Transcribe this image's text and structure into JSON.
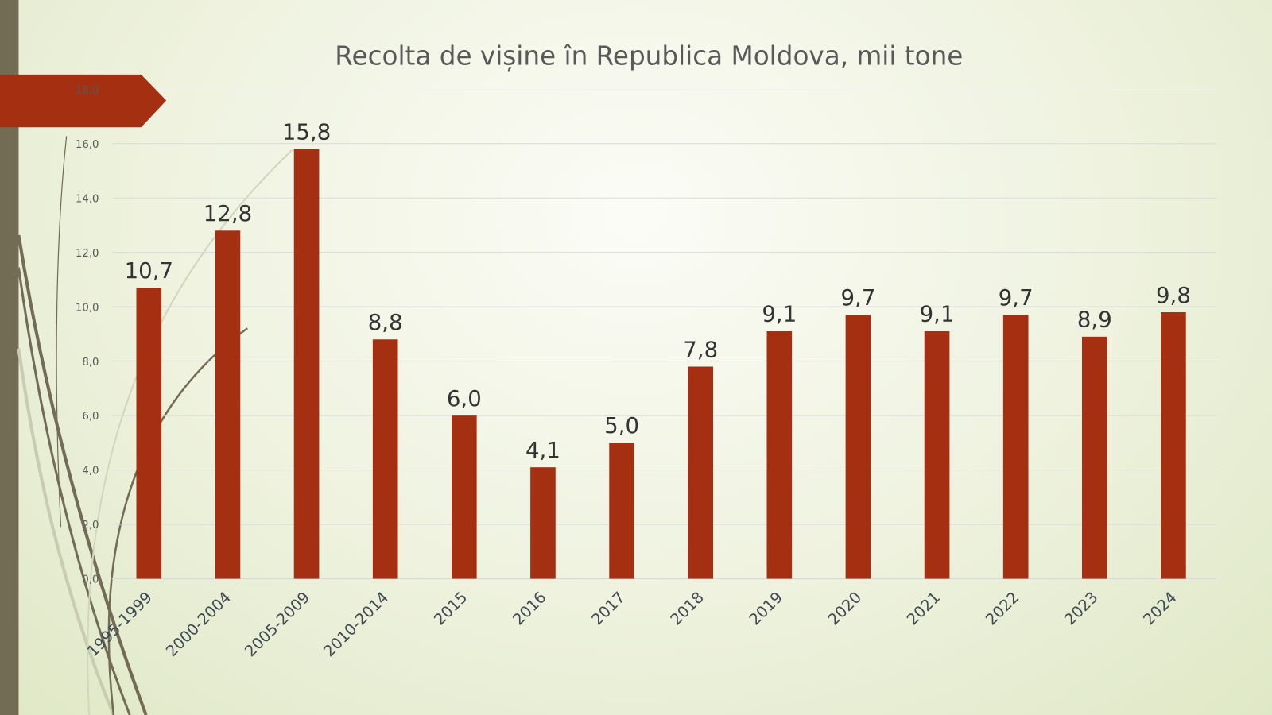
{
  "colors": {
    "bar": "#A52F11",
    "side": "#736C54",
    "banner": "#A52F11"
  },
  "chart_data": {
    "type": "bar",
    "title": "Recolta de vișine în Republica Moldova, mii tone",
    "categories": [
      "1995-1999",
      "2000-2004",
      "2005-2009",
      "2010-2014",
      "2015",
      "2016",
      "2017",
      "2018",
      "2019",
      "2020",
      "2021",
      "2022",
      "2023",
      "2024"
    ],
    "values": [
      10.7,
      12.8,
      15.8,
      8.8,
      6.0,
      4.1,
      5.0,
      7.8,
      9.1,
      9.7,
      9.1,
      9.7,
      8.9,
      9.8
    ],
    "data_labels": [
      "10,7",
      "12,8",
      "15,8",
      "8,8",
      "6,0",
      "4,1",
      "5,0",
      "7,8",
      "9,1",
      "9,7",
      "9,1",
      "9,7",
      "8,9",
      "9,8"
    ],
    "yticks": [
      "0,0",
      "2,0",
      "4,0",
      "6,0",
      "8,0",
      "10,0",
      "12,0",
      "14,0",
      "16,0",
      "18,0"
    ],
    "ylim": [
      0,
      18
    ],
    "xlabel": "",
    "ylabel": "",
    "grid": true
  }
}
